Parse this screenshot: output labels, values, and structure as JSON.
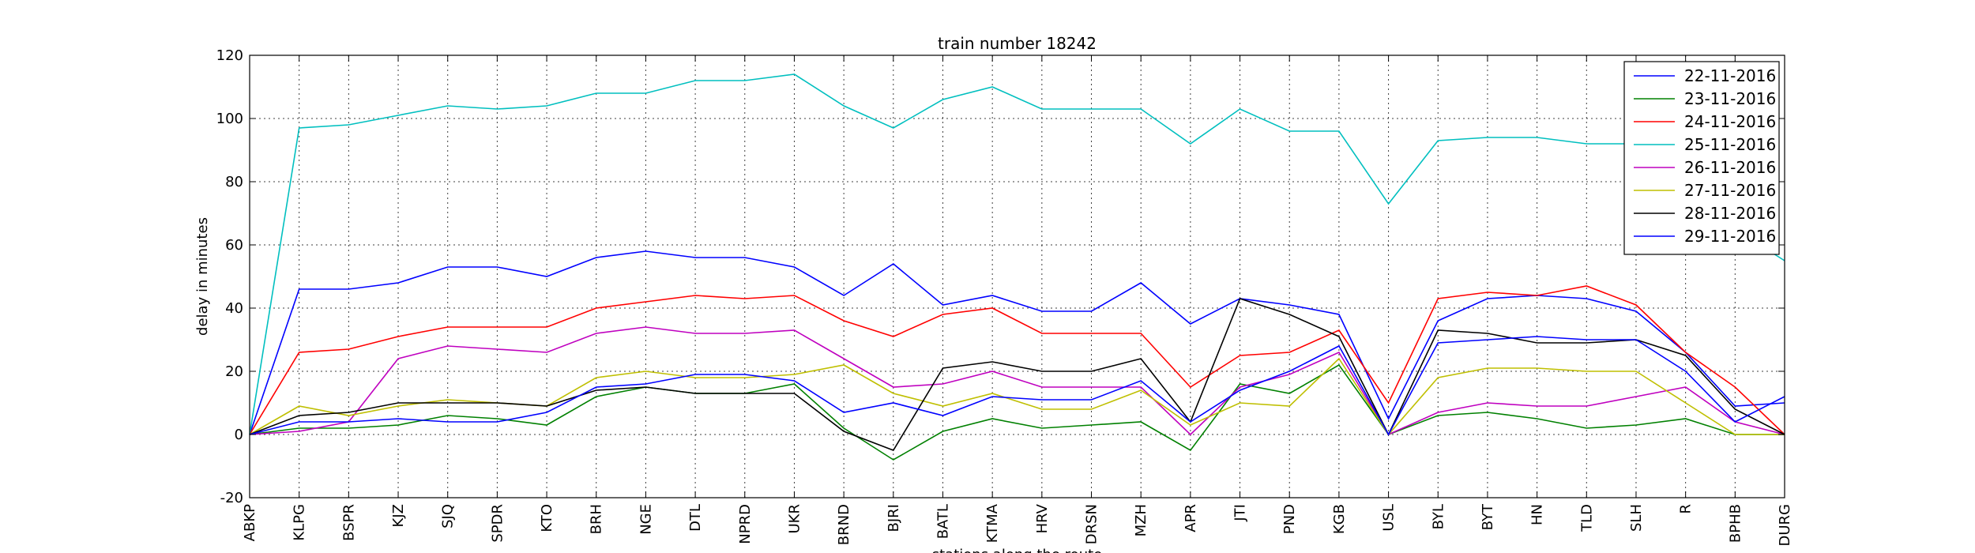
{
  "chart_data": {
    "type": "line",
    "title": "train number 18242",
    "xlabel": "stations along the route",
    "ylabel": "delay in minutes",
    "ylim": [
      -20,
      120
    ],
    "yticks": [
      -20,
      0,
      20,
      40,
      60,
      80,
      100,
      120
    ],
    "grid": true,
    "legend_position": "top-right",
    "categories": [
      "ABKP",
      "KLPG",
      "BSPR",
      "KJZ",
      "SJQ",
      "SPDR",
      "KTO",
      "BRH",
      "NGE",
      "DTL",
      "NPRD",
      "UKR",
      "BRND",
      "BJRI",
      "BATL",
      "KTMA",
      "HRV",
      "DRSN",
      "MZH",
      "APR",
      "JTI",
      "PND",
      "KGB",
      "USL",
      "BYL",
      "BYT",
      "HN",
      "TLD",
      "SLH",
      "R",
      "BPHB",
      "DURG"
    ],
    "series": [
      {
        "name": "22-11-2016",
        "color": "#0000ff",
        "values": [
          0,
          46,
          46,
          48,
          53,
          53,
          50,
          56,
          58,
          56,
          56,
          53,
          44,
          54,
          41,
          44,
          39,
          39,
          48,
          35,
          43,
          41,
          38,
          5,
          36,
          43,
          44,
          43,
          39,
          26,
          9,
          10
        ]
      },
      {
        "name": "23-11-2016",
        "color": "#008000",
        "values": [
          0,
          2,
          2,
          3,
          6,
          5,
          3,
          12,
          15,
          13,
          13,
          16,
          2,
          -8,
          1,
          5,
          2,
          3,
          4,
          -5,
          16,
          13,
          22,
          0,
          6,
          7,
          5,
          2,
          3,
          5,
          0,
          0
        ]
      },
      {
        "name": "24-11-2016",
        "color": "#ff0000",
        "values": [
          0,
          26,
          27,
          31,
          34,
          34,
          34,
          40,
          42,
          44,
          43,
          44,
          36,
          31,
          38,
          40,
          32,
          32,
          32,
          15,
          25,
          26,
          33,
          10,
          43,
          45,
          44,
          47,
          41,
          26,
          15,
          0
        ]
      },
      {
        "name": "25-11-2016",
        "color": "#00bfbf",
        "values": [
          0,
          97,
          98,
          101,
          104,
          103,
          104,
          108,
          108,
          112,
          112,
          114,
          104,
          97,
          106,
          110,
          103,
          103,
          103,
          92,
          103,
          96,
          96,
          73,
          93,
          94,
          94,
          92,
          92,
          92,
          65,
          55
        ]
      },
      {
        "name": "26-11-2016",
        "color": "#bf00bf",
        "values": [
          0,
          1,
          4,
          24,
          28,
          27,
          26,
          32,
          34,
          32,
          32,
          33,
          24,
          15,
          16,
          20,
          15,
          15,
          15,
          0,
          15,
          19,
          26,
          0,
          7,
          10,
          9,
          9,
          12,
          15,
          4,
          0
        ]
      },
      {
        "name": "27-11-2016",
        "color": "#bfbf00",
        "values": [
          0,
          9,
          6,
          9,
          11,
          10,
          9,
          18,
          20,
          18,
          18,
          19,
          22,
          13,
          9,
          13,
          8,
          8,
          14,
          3,
          10,
          9,
          24,
          0,
          18,
          21,
          21,
          20,
          20,
          10,
          0,
          0
        ]
      },
      {
        "name": "28-11-2016",
        "color": "#000000",
        "values": [
          0,
          6,
          7,
          10,
          10,
          10,
          9,
          14,
          15,
          13,
          13,
          13,
          1,
          -5,
          21,
          23,
          20,
          20,
          24,
          4,
          43,
          38,
          31,
          0,
          33,
          32,
          29,
          29,
          30,
          25,
          8,
          0
        ]
      },
      {
        "name": "29-11-2016",
        "color": "#0000ff",
        "values": [
          0,
          4,
          4,
          5,
          4,
          4,
          7,
          15,
          16,
          19,
          19,
          17,
          7,
          10,
          6,
          12,
          11,
          11,
          17,
          4,
          14,
          20,
          28,
          0,
          29,
          30,
          31,
          30,
          30,
          20,
          4,
          12
        ]
      }
    ]
  }
}
